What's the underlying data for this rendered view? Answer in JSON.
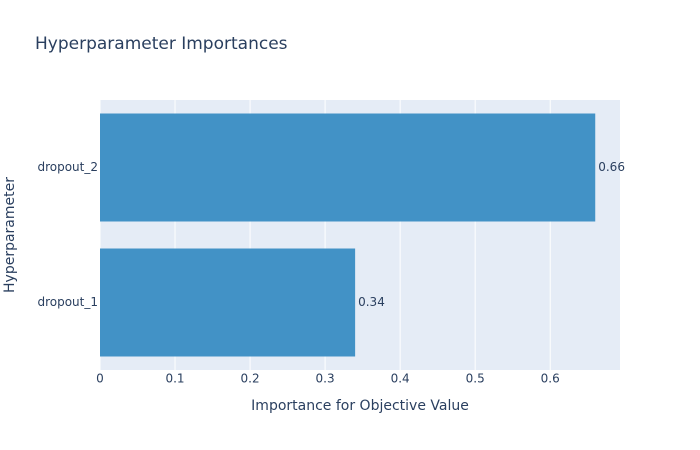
{
  "chart_data": {
    "type": "barh",
    "title": "Hyperparameter Importances",
    "xlabel": "Importance for Objective Value",
    "ylabel": "Hyperparameter",
    "categories": [
      "dropout_1",
      "dropout_2"
    ],
    "values": [
      0.34,
      0.66
    ],
    "value_labels": [
      "0.34",
      "0.66"
    ],
    "color": "#4292c6",
    "background": "#e5ecf6",
    "grid": true,
    "xlim": [
      0,
      0.693
    ],
    "xticks": [
      0,
      0.1,
      0.2,
      0.3,
      0.4,
      0.5,
      0.6
    ]
  }
}
